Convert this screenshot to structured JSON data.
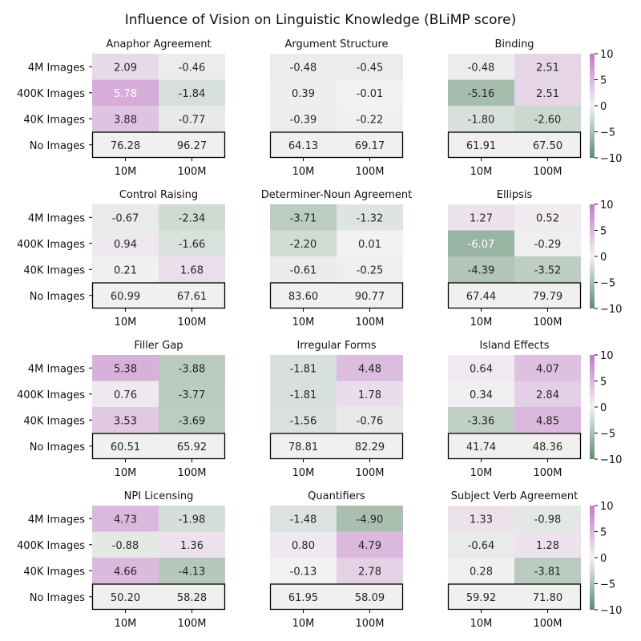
{
  "chart_data": {
    "type": "heatmap",
    "title": "Influence of Vision on Linguistic Knowledge (BLiMP score)",
    "row_labels": [
      "4M Images",
      "400K Images",
      "40K Images",
      "No Images"
    ],
    "col_labels": [
      "10M",
      "100M"
    ],
    "colorbar": {
      "min": -10,
      "max": 10,
      "ticks": [
        10,
        5,
        0,
        -5,
        -10
      ],
      "tick_labels": [
        "10",
        "5",
        "0",
        "−5",
        "−10"
      ]
    },
    "colors": {
      "negative": "#5e8c6e",
      "neutral": "#f2f2f2",
      "positive": "#c27ac8",
      "baseline_fill": "#f0f0f0"
    },
    "panels": [
      {
        "title": "Anaphor Agreement",
        "deltas": [
          [
            "2.09",
            "-0.46"
          ],
          [
            "5.78",
            "-1.84"
          ],
          [
            "3.88",
            "-0.77"
          ]
        ],
        "baseline": [
          "76.28",
          "96.27"
        ]
      },
      {
        "title": "Argument Structure",
        "deltas": [
          [
            "-0.48",
            "-0.45"
          ],
          [
            "0.39",
            "-0.01"
          ],
          [
            "-0.39",
            "-0.22"
          ]
        ],
        "baseline": [
          "64.13",
          "69.17"
        ]
      },
      {
        "title": "Binding",
        "deltas": [
          [
            "-0.48",
            "2.51"
          ],
          [
            "-5.16",
            "2.51"
          ],
          [
            "-1.80",
            "-2.60"
          ]
        ],
        "baseline": [
          "61.91",
          "67.50"
        ]
      },
      {
        "title": "Control Raising",
        "deltas": [
          [
            "-0.67",
            "-2.34"
          ],
          [
            "0.94",
            "-1.66"
          ],
          [
            "0.21",
            "1.68"
          ]
        ],
        "baseline": [
          "60.99",
          "67.61"
        ]
      },
      {
        "title": "Determiner-Noun Agreement",
        "deltas": [
          [
            "-3.71",
            "-1.32"
          ],
          [
            "-2.20",
            "0.01"
          ],
          [
            "-0.61",
            "-0.25"
          ]
        ],
        "baseline": [
          "83.60",
          "90.77"
        ]
      },
      {
        "title": "Ellipsis",
        "deltas": [
          [
            "1.27",
            "0.52"
          ],
          [
            "-6.07",
            "-0.29"
          ],
          [
            "-4.39",
            "-3.52"
          ]
        ],
        "baseline": [
          "67.44",
          "79.79"
        ]
      },
      {
        "title": "Filler Gap",
        "deltas": [
          [
            "5.38",
            "-3.88"
          ],
          [
            "0.76",
            "-3.77"
          ],
          [
            "3.53",
            "-3.69"
          ]
        ],
        "baseline": [
          "60.51",
          "65.92"
        ]
      },
      {
        "title": "Irregular Forms",
        "deltas": [
          [
            "-1.81",
            "4.48"
          ],
          [
            "-1.81",
            "1.78"
          ],
          [
            "-1.56",
            "-0.76"
          ]
        ],
        "baseline": [
          "78.81",
          "82.29"
        ]
      },
      {
        "title": "Island Effects",
        "deltas": [
          [
            "0.64",
            "4.07"
          ],
          [
            "0.34",
            "2.84"
          ],
          [
            "-3.36",
            "4.85"
          ]
        ],
        "baseline": [
          "41.74",
          "48.36"
        ]
      },
      {
        "title": "NPI Licensing",
        "deltas": [
          [
            "4.73",
            "-1.98"
          ],
          [
            "-0.88",
            "1.36"
          ],
          [
            "4.66",
            "-4.13"
          ]
        ],
        "baseline": [
          "50.20",
          "58.28"
        ]
      },
      {
        "title": "Quantifiers",
        "deltas": [
          [
            "-1.48",
            "-4.90"
          ],
          [
            "0.80",
            "4.79"
          ],
          [
            "-0.13",
            "2.78"
          ]
        ],
        "baseline": [
          "61.95",
          "58.09"
        ]
      },
      {
        "title": "Subject Verb Agreement",
        "deltas": [
          [
            "1.33",
            "-0.98"
          ],
          [
            "-0.64",
            "1.28"
          ],
          [
            "0.28",
            "-3.81"
          ]
        ],
        "baseline": [
          "59.92",
          "71.80"
        ]
      }
    ]
  }
}
